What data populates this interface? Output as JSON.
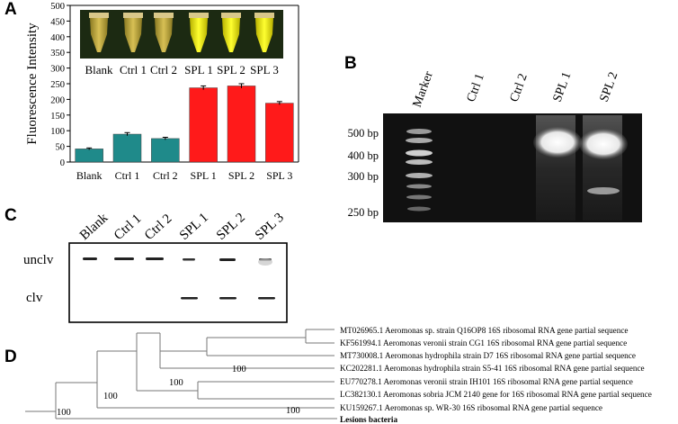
{
  "panels": {
    "a": "A",
    "b": "B",
    "c": "C",
    "d": "D"
  },
  "panel_a": {
    "tube_labels": [
      "Blank",
      "Ctrl 1",
      "Ctrl 2",
      "SPL 1",
      "SPL 2",
      "SPL 3"
    ],
    "tube_fluorescence": [
      "dim",
      "dim",
      "dim",
      "bright",
      "bright",
      "bright"
    ],
    "colors": {
      "control_bar": "#1f8a8a",
      "sample_bar": "#ff1a1a",
      "photo_bg": "#1c2a12"
    }
  },
  "chart_data": {
    "type": "bar",
    "categories": [
      "Blank",
      "Ctrl 1",
      "Ctrl 2",
      "SPL 1",
      "SPL 2",
      "SPL 3"
    ],
    "values": [
      42,
      89,
      75,
      237,
      243,
      188
    ],
    "errors": [
      3,
      5,
      4,
      6,
      7,
      5
    ],
    "ylabel": "Fluorescence Intensity",
    "ylim": [
      0,
      500
    ],
    "yticks": [
      0,
      50,
      100,
      150,
      200,
      250,
      300,
      350,
      400,
      450,
      500
    ],
    "bar_colors": [
      "teal",
      "teal",
      "teal",
      "red",
      "red",
      "red"
    ],
    "grid": false
  },
  "panel_b": {
    "lane_labels": [
      "Marker",
      "Ctrl 1",
      "Ctrl 2",
      "SPL 1",
      "SPL 2"
    ],
    "size_labels": [
      "500 bp",
      "400 bp",
      "300 bp",
      "250 bp"
    ]
  },
  "panel_c": {
    "lane_labels": [
      "Blank",
      "Ctrl 1",
      "Ctrl 2",
      "SPL 1",
      "SPL 2",
      "SPL 3"
    ],
    "row_labels": [
      "unclv",
      "clv"
    ]
  },
  "panel_d": {
    "taxa": [
      "MT026965.1 Aeromonas sp. strain Q16OP8 16S ribosomal RNA gene partial sequence",
      "KF561994.1 Aeromonas veronii strain CG1 16S ribosomal RNA gene partial sequence",
      "MT730008.1 Aeromonas hydrophila strain D7 16S ribosomal RNA gene partial sequence",
      "KC202281.1 Aeromonas hydrophila strain S5-41 16S ribosomal RNA gene partial sequence",
      "EU770278.1 Aeromonas veronii strain IH101 16S ribosomal RNA gene partial sequence",
      "LC382130.1 Aeromonas sobria JCM 2140 gene for 16S ribosomal RNA gene partial sequence",
      "KU159267.1 Aeromonas sp. WR-30 16S ribosomal RNA gene partial sequence",
      "Lesions bacteria"
    ],
    "bootstrap": [
      "100",
      "100",
      "100",
      "100",
      "100"
    ]
  }
}
